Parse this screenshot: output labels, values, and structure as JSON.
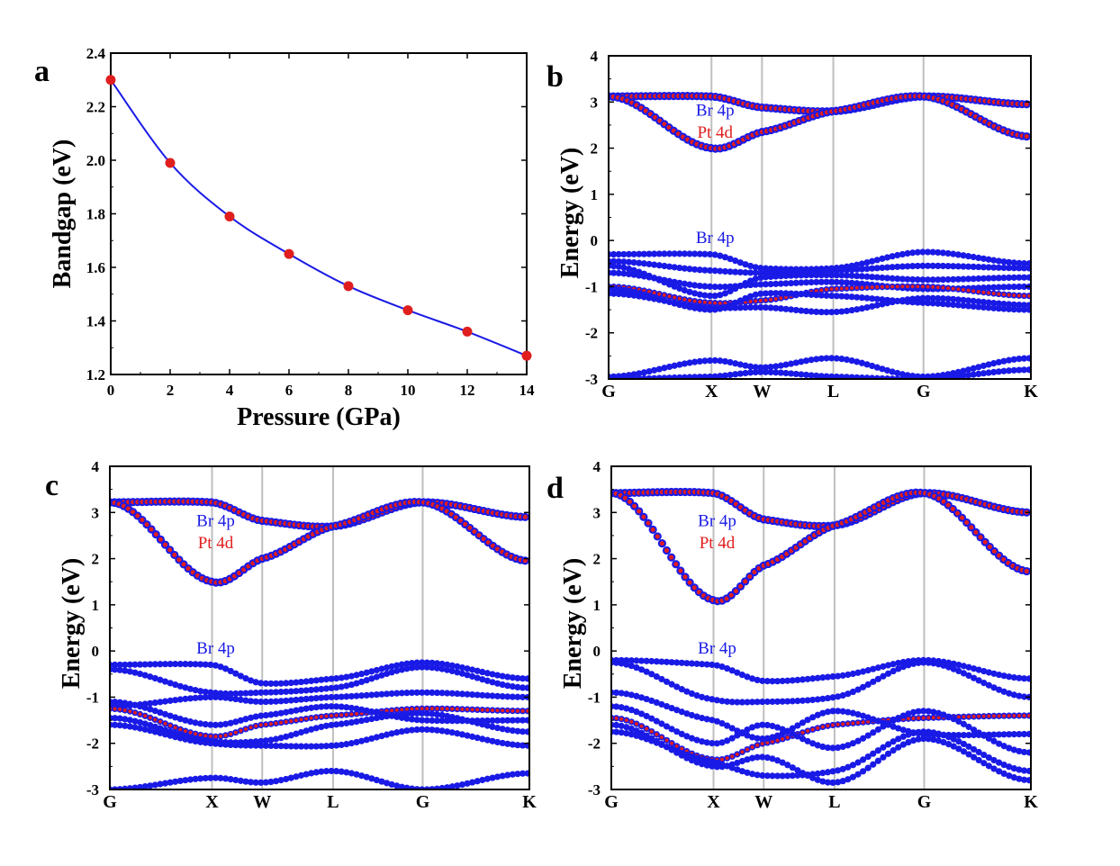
{
  "colors": {
    "blue": "#1a1ae6",
    "red": "#e01e1e",
    "grid": "#bfbfbf",
    "axis": "#000000"
  },
  "chart_data": [
    {
      "panel": "a",
      "type": "line",
      "title": "",
      "xlabel": "Pressure (GPa)",
      "ylabel": "Bandgap (eV)",
      "xlim": [
        0,
        14
      ],
      "ylim": [
        1.2,
        2.4
      ],
      "x_ticks": [
        "0",
        "2",
        "4",
        "6",
        "8",
        "10",
        "12",
        "14"
      ],
      "y_ticks": [
        "1.2",
        "1.4",
        "1.6",
        "1.8",
        "2.0",
        "2.2",
        "2.4"
      ],
      "series": [
        {
          "name": "Bandgap",
          "x": [
            0,
            2,
            4,
            6,
            8,
            10,
            12,
            14
          ],
          "values": [
            2.3,
            1.99,
            1.79,
            1.65,
            1.53,
            1.44,
            1.36,
            1.27
          ]
        }
      ]
    },
    {
      "panel": "b",
      "type": "line",
      "ylabel": "Energy (eV)",
      "ylim": [
        -3,
        4
      ],
      "y_ticks": [
        "-3",
        "-2",
        "-1",
        "0",
        "1",
        "2",
        "3",
        "4"
      ],
      "kpoints": [
        "G",
        "X",
        "W",
        "L",
        "G",
        "K"
      ],
      "annotations": [
        "Br 4p",
        "Pt 4d",
        "Br 4p"
      ],
      "conduction": {
        "top": [
          3.12,
          3.12,
          2.88,
          2.8,
          3.12,
          2.95
        ],
        "bottom": [
          3.12,
          2.0,
          2.35,
          2.8,
          3.12,
          2.25
        ],
        "k_dip": 2.6
      },
      "valence": {
        "bands": [
          [
            -0.3,
            -0.3,
            -0.6,
            -0.6,
            -0.25,
            -0.5
          ],
          [
            -0.45,
            -0.65,
            -0.7,
            -0.65,
            -0.55,
            -0.6
          ],
          [
            -0.55,
            -1.2,
            -0.8,
            -0.75,
            -0.85,
            -0.8
          ],
          [
            -0.7,
            -1.0,
            -0.95,
            -0.9,
            -1.05,
            -1.0
          ],
          [
            -1.0,
            -1.35,
            -1.3,
            -1.05,
            -1.0,
            -1.2
          ],
          [
            -1.15,
            -1.45,
            -1.45,
            -1.55,
            -1.25,
            -1.4
          ],
          [
            -1.05,
            -1.5,
            -1.15,
            -1.2,
            -1.35,
            -1.5
          ]
        ],
        "deep": [
          [
            -2.95,
            -2.6,
            -2.75,
            -2.55,
            -2.95,
            -2.55
          ],
          [
            -3.0,
            -2.95,
            -2.85,
            -2.95,
            -3.0,
            -2.8
          ]
        ],
        "red_bands": [
          4
        ]
      }
    },
    {
      "panel": "c",
      "type": "line",
      "ylabel": "Energy (eV)",
      "ylim": [
        -3,
        4
      ],
      "y_ticks": [
        "-3",
        "-2",
        "-1",
        "0",
        "1",
        "2",
        "3",
        "4"
      ],
      "kpoints": [
        "G",
        "X",
        "W",
        "L",
        "G",
        "K"
      ],
      "annotations": [
        "Br 4p",
        "Pt 4d",
        "Br 4p"
      ],
      "conduction": {
        "top": [
          3.22,
          3.22,
          2.82,
          2.7,
          3.22,
          2.9
        ],
        "bottom": [
          3.22,
          1.5,
          2.0,
          2.7,
          3.22,
          1.95
        ],
        "k_dip": 2.7
      },
      "valence": {
        "bands": [
          [
            -0.3,
            -0.3,
            -0.7,
            -0.6,
            -0.25,
            -0.6
          ],
          [
            -0.4,
            -0.9,
            -0.9,
            -0.8,
            -0.35,
            -0.8
          ],
          [
            -1.2,
            -1.0,
            -1.1,
            -1.0,
            -0.9,
            -1.0
          ],
          [
            -1.25,
            -1.85,
            -1.6,
            -1.4,
            -1.25,
            -1.3
          ],
          [
            -1.45,
            -1.95,
            -1.95,
            -1.6,
            -1.35,
            -1.75
          ],
          [
            -1.6,
            -2.0,
            -2.05,
            -2.05,
            -1.7,
            -2.05
          ],
          [
            -1.1,
            -1.6,
            -1.4,
            -1.2,
            -1.5,
            -1.5
          ]
        ],
        "deep": [
          [
            -3.0,
            -2.75,
            -2.85,
            -2.6,
            -3.0,
            -2.65
          ]
        ],
        "red_bands": [
          3
        ]
      }
    },
    {
      "panel": "d",
      "type": "line",
      "ylabel": "Energy (eV)",
      "ylim": [
        -3,
        4
      ],
      "y_ticks": [
        "-3",
        "-2",
        "-1",
        "0",
        "1",
        "2",
        "3",
        "4"
      ],
      "kpoints": [
        "G",
        "X",
        "W",
        "L",
        "G",
        "K"
      ],
      "annotations": [
        "Br 4p",
        "Pt 4d",
        "Br 4p"
      ],
      "conduction": {
        "top": [
          3.42,
          3.42,
          2.85,
          2.72,
          3.42,
          3.0
        ],
        "bottom": [
          3.42,
          1.1,
          1.85,
          2.72,
          3.42,
          1.72
        ],
        "k_dip": 2.7
      },
      "valence": {
        "bands": [
          [
            -0.2,
            -0.3,
            -0.65,
            -0.55,
            -0.2,
            -0.6
          ],
          [
            -0.25,
            -1.05,
            -1.1,
            -1.0,
            -0.25,
            -1.0
          ],
          [
            -1.45,
            -2.35,
            -2.0,
            -1.6,
            -1.45,
            -1.4
          ],
          [
            -1.75,
            -2.4,
            -2.7,
            -2.6,
            -1.75,
            -2.6
          ],
          [
            -0.9,
            -1.5,
            -1.9,
            -1.3,
            -1.8,
            -1.8
          ],
          [
            -1.6,
            -2.5,
            -2.3,
            -2.85,
            -1.9,
            -2.8
          ],
          [
            -1.2,
            -2.0,
            -1.6,
            -2.1,
            -1.3,
            -2.2
          ]
        ],
        "deep": [],
        "red_bands": [
          2
        ]
      }
    }
  ]
}
